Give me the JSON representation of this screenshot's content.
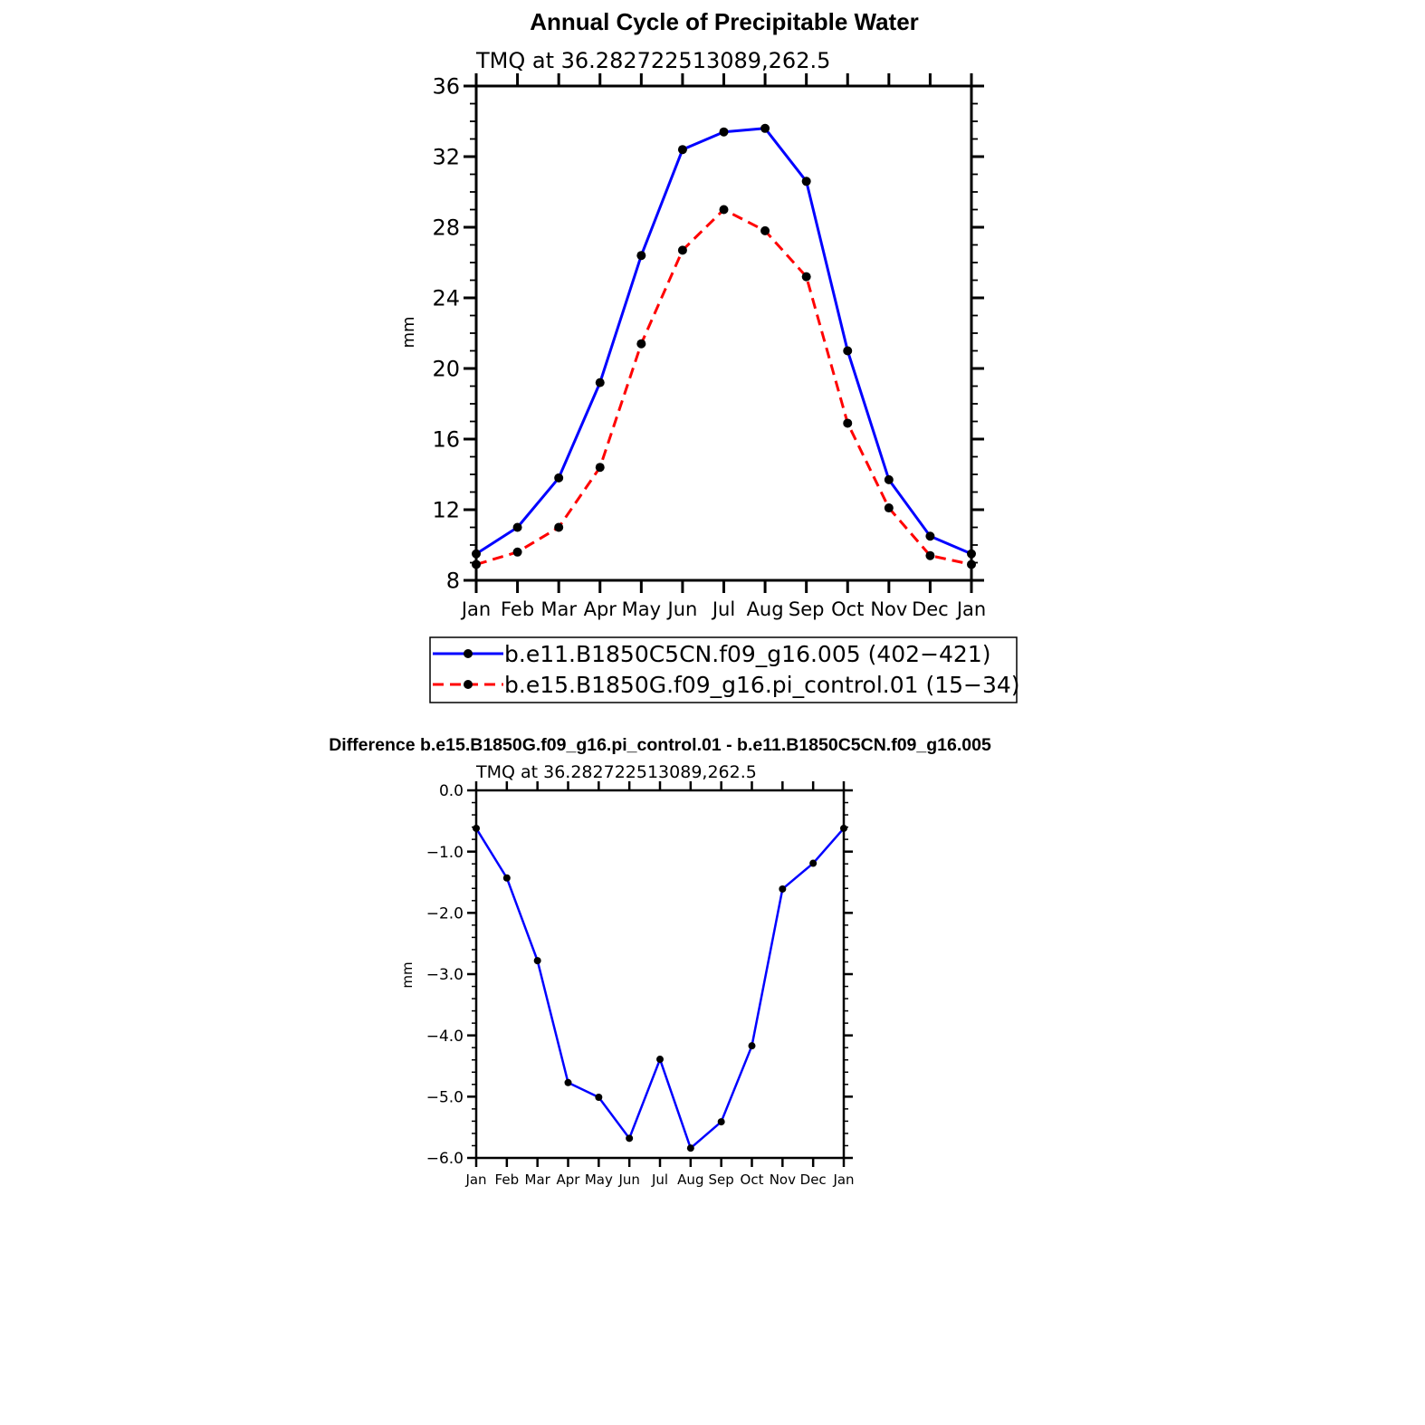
{
  "chart_data": [
    {
      "type": "line",
      "title": "Annual Cycle of Precipitable Water",
      "subtitle": "TMQ at 36.282722513089,262.5",
      "xlabel": "",
      "ylabel": "mm",
      "categories": [
        "Jan",
        "Feb",
        "Mar",
        "Apr",
        "May",
        "Jun",
        "Jul",
        "Aug",
        "Sep",
        "Oct",
        "Nov",
        "Dec",
        "Jan"
      ],
      "ylim": [
        8,
        36
      ],
      "yticks": [
        "8",
        "12",
        "16",
        "20",
        "24",
        "28",
        "32",
        "36"
      ],
      "grid": false,
      "legend": "bottom",
      "series": [
        {
          "name": "b.e11.B1850C5CN.f09_g16.005 (402−421)",
          "color": "#0000ff",
          "dash": "solid",
          "marker": "filled-circle",
          "values": [
            9.5,
            11.0,
            13.8,
            19.2,
            26.4,
            32.4,
            33.4,
            33.6,
            30.6,
            21.0,
            13.7,
            10.5,
            9.5
          ]
        },
        {
          "name": "b.e15.B1850G.f09_g16.pi_control.01 (15−34)",
          "color": "#ff0000",
          "dash": "dashed",
          "marker": "filled-circle",
          "values": [
            8.9,
            9.6,
            11.0,
            14.4,
            21.4,
            26.7,
            29.0,
            27.8,
            25.2,
            16.9,
            12.1,
            9.4,
            8.9
          ]
        }
      ]
    },
    {
      "type": "line",
      "title": "Difference b.e15.B1850G.f09_g16.pi_control.01 - b.e11.B1850C5CN.f09_g16.005",
      "subtitle": "TMQ at 36.282722513089,262.5",
      "xlabel": "",
      "ylabel": "mm",
      "categories": [
        "Jan",
        "Feb",
        "Mar",
        "Apr",
        "May",
        "Jun",
        "Jul",
        "Aug",
        "Sep",
        "Oct",
        "Nov",
        "Dec",
        "Jan"
      ],
      "ylim": [
        -6.0,
        0.0
      ],
      "yticks": [
        "−6.0",
        "−5.0",
        "−4.0",
        "−3.0",
        "−2.0",
        "−1.0",
        "0.0"
      ],
      "grid": false,
      "series": [
        {
          "color": "#0000ff",
          "dash": "solid",
          "marker": "filled-circle",
          "values": [
            -0.62,
            -1.43,
            -2.78,
            -4.77,
            -5.01,
            -5.68,
            -4.39,
            -5.84,
            -5.41,
            -4.17,
            -1.61,
            -1.19,
            -0.62
          ]
        }
      ]
    }
  ]
}
